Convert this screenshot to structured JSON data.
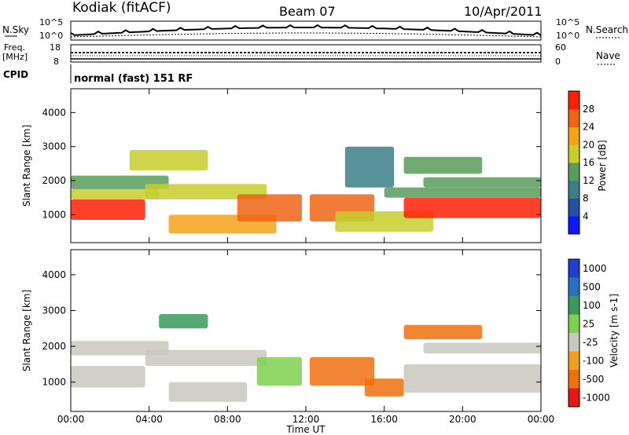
{
  "header": {
    "station": "Kodiak (fitACF)",
    "beam": "Beam 07",
    "date": "10/Apr/2011"
  },
  "panels": {
    "nsky": {
      "left_label": "N.Sky",
      "right_label": "N.Search",
      "left_ticks": [
        "10^5",
        "10^0"
      ],
      "right_ticks": [
        "10^5",
        "10^0"
      ]
    },
    "freq": {
      "left_label_1": "Freq.",
      "left_label_2": "[MHz]",
      "right_label": "Nave",
      "left_ticks": [
        "18",
        "8"
      ],
      "right_ticks": [
        "60",
        "0"
      ]
    },
    "cpid": {
      "label": "CPID",
      "mode": "normal (fast) 151 RF"
    }
  },
  "axes": {
    "x_ticks": [
      "00:00",
      "04:00",
      "08:00",
      "12:00",
      "16:00",
      "20:00",
      "00:00"
    ],
    "x_label": "Time UT",
    "y_ticks": [
      "1000",
      "2000",
      "3000",
      "4000"
    ],
    "y_label": "Slant Range [km]"
  },
  "colors": {
    "power_scale": [
      "#0b17ff",
      "#264fa6",
      "#3b7f86",
      "#5a9b5a",
      "#c8cf2d",
      "#f5a21b",
      "#f06414",
      "#ff1f05"
    ],
    "velocity_scale": [
      "#1f3fcc",
      "#2a6fc0",
      "#3a9a5a",
      "#7fd050",
      "#c8c8c0",
      "#f0a020",
      "#f07010",
      "#e51818"
    ]
  },
  "chart_data": [
    {
      "type": "heatmap",
      "title": "",
      "xlabel": "Time UT",
      "ylabel": "Slant Range [km]",
      "xlim": [
        0,
        24
      ],
      "ylim": [
        180,
        4700
      ],
      "colorbar": {
        "label": "Power [dB]",
        "ticks": [
          "4",
          "8",
          "12",
          "16",
          "20",
          "24",
          "28"
        ],
        "range": [
          0,
          32
        ]
      },
      "bands": [
        {
          "t0": 0.0,
          "t1": 3.8,
          "r0": 850,
          "r1": 1450,
          "value": 28
        },
        {
          "t0": 0.0,
          "t1": 4.5,
          "r0": 1450,
          "r1": 1750,
          "value": 18
        },
        {
          "t0": 0.0,
          "t1": 5.0,
          "r0": 1750,
          "r1": 2150,
          "value": 14
        },
        {
          "t0": 3.8,
          "t1": 10.0,
          "r0": 1450,
          "r1": 1900,
          "value": 16
        },
        {
          "t0": 5.0,
          "t1": 10.5,
          "r0": 450,
          "r1": 1000,
          "value": 20
        },
        {
          "t0": 8.5,
          "t1": 11.8,
          "r0": 800,
          "r1": 1600,
          "value": 26
        },
        {
          "t0": 12.2,
          "t1": 15.5,
          "r0": 800,
          "r1": 1600,
          "value": 26
        },
        {
          "t0": 13.5,
          "t1": 18.5,
          "r0": 500,
          "r1": 1100,
          "value": 16
        },
        {
          "t0": 17.0,
          "t1": 24.0,
          "r0": 900,
          "r1": 1500,
          "value": 28
        },
        {
          "t0": 16.0,
          "t1": 24.0,
          "r0": 1500,
          "r1": 1800,
          "value": 14
        },
        {
          "t0": 18.0,
          "t1": 24.0,
          "r0": 1800,
          "r1": 2100,
          "value": 12
        },
        {
          "t0": 14.0,
          "t1": 16.5,
          "r0": 1800,
          "r1": 3000,
          "value": 10
        },
        {
          "t0": 3.0,
          "t1": 7.0,
          "r0": 2300,
          "r1": 2900,
          "value": 16
        },
        {
          "t0": 17.0,
          "t1": 21.0,
          "r0": 2200,
          "r1": 2700,
          "value": 14
        }
      ]
    },
    {
      "type": "heatmap",
      "title": "",
      "xlabel": "Time UT",
      "ylabel": "Slant Range [km]",
      "xlim": [
        0,
        24
      ],
      "ylim": [
        180,
        4700
      ],
      "colorbar": {
        "label": "Velocity [m s-1]",
        "ticks": [
          "1000",
          "500",
          "100",
          "25",
          "-25",
          "-100",
          "-500",
          "-1000"
        ]
      },
      "bands": [
        {
          "t0": 0.0,
          "t1": 3.8,
          "r0": 850,
          "r1": 1450,
          "value": 0
        },
        {
          "t0": 0.0,
          "t1": 5.0,
          "r0": 1750,
          "r1": 2150,
          "value": 0
        },
        {
          "t0": 3.8,
          "t1": 10.0,
          "r0": 1450,
          "r1": 1900,
          "value": 0
        },
        {
          "t0": 5.0,
          "t1": 9.0,
          "r0": 450,
          "r1": 1000,
          "value": 0
        },
        {
          "t0": 9.5,
          "t1": 11.8,
          "r0": 900,
          "r1": 1700,
          "value": 60
        },
        {
          "t0": 12.2,
          "t1": 15.5,
          "r0": 900,
          "r1": 1700,
          "value": -200
        },
        {
          "t0": 15.0,
          "t1": 17.0,
          "r0": 600,
          "r1": 1100,
          "value": -300
        },
        {
          "t0": 17.0,
          "t1": 24.0,
          "r0": 700,
          "r1": 1500,
          "value": 0
        },
        {
          "t0": 18.0,
          "t1": 24.0,
          "r0": 1800,
          "r1": 2100,
          "value": 0
        },
        {
          "t0": 4.5,
          "t1": 7.0,
          "r0": 2500,
          "r1": 2900,
          "value": 150
        },
        {
          "t0": 17.0,
          "t1": 21.0,
          "r0": 2200,
          "r1": 2600,
          "value": -300
        }
      ]
    }
  ]
}
